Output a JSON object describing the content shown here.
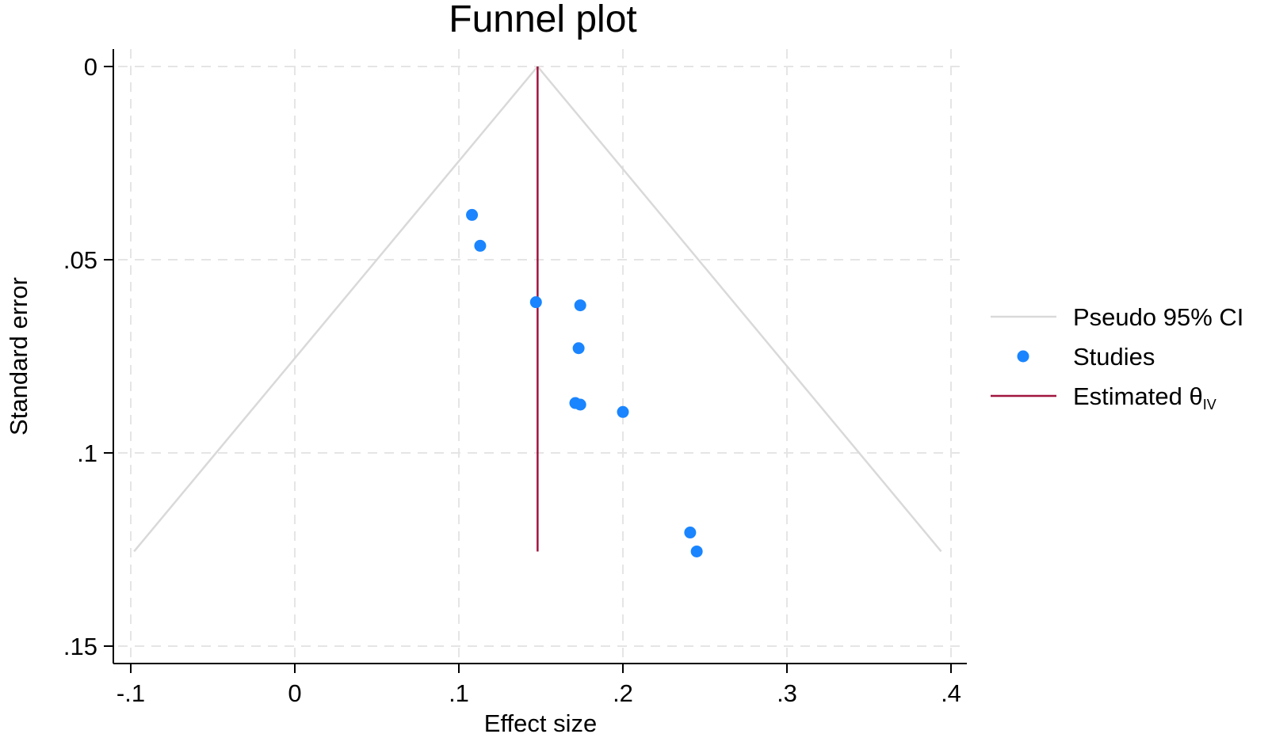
{
  "chart_data": {
    "type": "scatter",
    "title": "Funnel plot",
    "xlabel": "Effect size",
    "ylabel": "Standard error",
    "xlim": [
      -0.1,
      0.4
    ],
    "ylim": [
      0,
      0.15
    ],
    "y_reversed": true,
    "grid": true,
    "x_ticks": [
      {
        "value": -0.1,
        "label": "-.1"
      },
      {
        "value": 0,
        "label": "0"
      },
      {
        "value": 0.1,
        "label": ".1"
      },
      {
        "value": 0.2,
        "label": ".2"
      },
      {
        "value": 0.3,
        "label": ".3"
      },
      {
        "value": 0.4,
        "label": ".4"
      }
    ],
    "y_ticks": [
      {
        "value": 0,
        "label": "0"
      },
      {
        "value": 0.05,
        "label": ".05"
      },
      {
        "value": 0.1,
        "label": ".1"
      },
      {
        "value": 0.15,
        "label": ".15"
      }
    ],
    "series": [
      {
        "name": "Pseudo 95% CI",
        "kind": "line",
        "color": "#d9d9d9",
        "lines": [
          [
            [
              0.148,
              0.0
            ],
            [
              -0.098,
              0.1255
            ]
          ],
          [
            [
              0.148,
              0.0
            ],
            [
              0.394,
              0.1255
            ]
          ]
        ]
      },
      {
        "name": "Studies",
        "kind": "scatter",
        "color": "#1a85ff",
        "points": [
          [
            0.108,
            0.0384
          ],
          [
            0.113,
            0.0464
          ],
          [
            0.147,
            0.061
          ],
          [
            0.174,
            0.0618
          ],
          [
            0.173,
            0.0729
          ],
          [
            0.171,
            0.0871
          ],
          [
            0.174,
            0.0875
          ],
          [
            0.2,
            0.0894
          ],
          [
            0.241,
            0.1206
          ],
          [
            0.245,
            0.1255
          ]
        ]
      },
      {
        "name": "Estimated θ",
        "name_subscript": "IV",
        "kind": "vline",
        "color": "#a0153e",
        "x": 0.148,
        "y_range": [
          0,
          0.1255
        ]
      }
    ],
    "legend_position": "right"
  }
}
